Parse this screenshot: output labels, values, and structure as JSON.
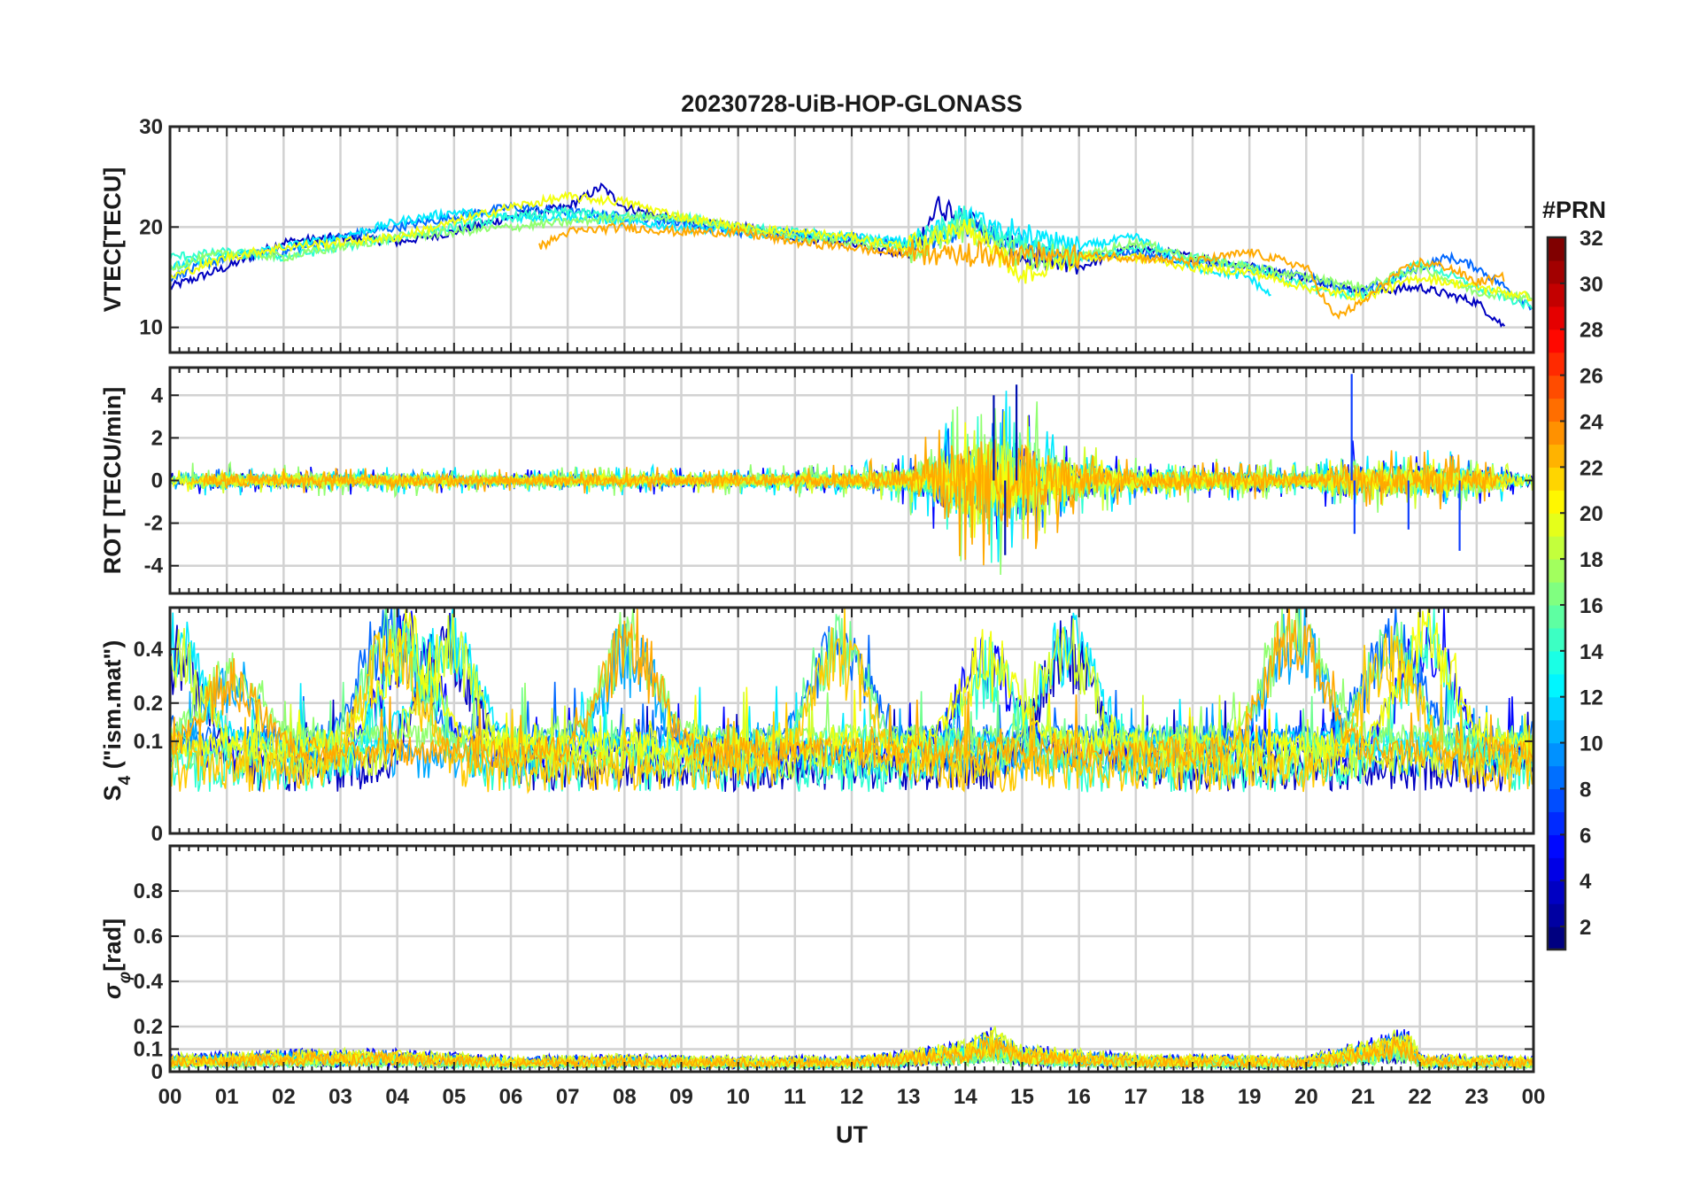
{
  "chart_data": {
    "type": "line",
    "title": "20230728-UiB-HOP-GLONASS",
    "xlabel": "UT",
    "x_tick_labels": [
      "00",
      "01",
      "02",
      "03",
      "04",
      "05",
      "06",
      "07",
      "08",
      "09",
      "10",
      "11",
      "12",
      "13",
      "14",
      "15",
      "16",
      "17",
      "18",
      "19",
      "20",
      "21",
      "22",
      "23",
      "00"
    ],
    "x_range_hours": [
      0,
      24
    ],
    "grid": true,
    "colorbar": {
      "title": "#PRN",
      "range": [
        1,
        32
      ],
      "tick_labels": [
        "2",
        "4",
        "6",
        "8",
        "10",
        "12",
        "14",
        "16",
        "18",
        "20",
        "22",
        "24",
        "26",
        "28",
        "30",
        "32"
      ],
      "colormap": "jet"
    },
    "panels": [
      {
        "id": "vtec",
        "ylabel": "VTEC[TECU]",
        "ylim": [
          7.5,
          30
        ],
        "y_tick_labels": [
          "10",
          "20",
          "30"
        ],
        "series_description": "VTEC per PRN, ~13-24 TECU, peak near 13-14 UT",
        "series": [
          {
            "prn": 3,
            "x": [
              0,
              1,
              2,
              3,
              4,
              5,
              6,
              7,
              7.6,
              8,
              9,
              10,
              11,
              12,
              13,
              13.5,
              14,
              15,
              16,
              17,
              18,
              19,
              20,
              21,
              22,
              23,
              23.5
            ],
            "y": [
              14,
              16,
              18.5,
              19,
              18.5,
              19.5,
              21,
              22,
              24,
              22,
              20.5,
              20,
              19,
              18.5,
              17,
              22,
              21,
              17,
              16,
              18,
              17,
              16,
              15,
              13.5,
              14,
              12.5,
              10
            ]
          },
          {
            "prn": 8,
            "x": [
              0,
              1,
              2,
              3,
              4,
              5,
              6,
              7,
              8,
              9,
              10,
              11,
              12,
              13,
              14,
              15,
              16,
              17,
              18,
              19,
              20,
              21,
              22,
              22.5,
              23,
              24
            ],
            "y": [
              15,
              17,
              17.5,
              19,
              20,
              21,
              22,
              21.5,
              21,
              20.5,
              19.5,
              19.5,
              19,
              18,
              20,
              18,
              17,
              17.5,
              16.5,
              16,
              15,
              13.5,
              16,
              17,
              16,
              12
            ]
          },
          {
            "prn": 12,
            "x": [
              0,
              1,
              2,
              3,
              4,
              5,
              6,
              7,
              8,
              9,
              10,
              11,
              12,
              13,
              14,
              15,
              16,
              17,
              18,
              19,
              19.4
            ],
            "y": [
              16,
              17,
              18,
              19,
              20.5,
              21.5,
              21,
              21,
              20.5,
              20,
              19.5,
              19,
              19,
              18.5,
              21,
              19,
              18,
              19,
              16,
              15,
              13
            ]
          },
          {
            "prn": 14,
            "x": [
              0,
              1,
              2,
              3,
              4,
              5,
              6,
              7,
              8,
              9,
              10,
              11,
              12,
              13,
              14,
              15,
              16,
              17,
              18,
              19,
              20,
              21,
              22,
              23,
              24
            ],
            "y": [
              17,
              17.5,
              17,
              18,
              19,
              20,
              21,
              21.5,
              21,
              21,
              20,
              19.5,
              19,
              18,
              21,
              18,
              17,
              18,
              17,
              16,
              14,
              13,
              16.5,
              14,
              12
            ]
          },
          {
            "prn": 17,
            "x": [
              0,
              1,
              2,
              3,
              4,
              5,
              6,
              7,
              8,
              9,
              10,
              11,
              12,
              13,
              14,
              15,
              16,
              17,
              18,
              19,
              20,
              21,
              22,
              23,
              24
            ],
            "y": [
              16,
              17.5,
              17,
              18,
              19,
              19.5,
              20,
              20.5,
              21,
              21,
              20,
              19,
              18.5,
              17.5,
              20,
              17,
              17,
              18.5,
              17,
              16,
              15,
              14,
              16,
              13.5,
              13
            ]
          },
          {
            "prn": 20,
            "x": [
              0,
              1,
              2,
              3,
              4,
              5,
              6,
              7,
              8,
              9,
              10,
              11,
              12,
              13,
              14,
              15,
              16,
              17,
              18,
              19,
              20,
              21,
              22,
              23,
              24
            ],
            "y": [
              15,
              17,
              18,
              18.5,
              19,
              20.5,
              22,
              23,
              22.5,
              21,
              20,
              19.5,
              19,
              18,
              20,
              15,
              17,
              17,
              16,
              15.5,
              14,
              13,
              15,
              14,
              13
            ]
          },
          {
            "prn": 23,
            "x": [
              6.5,
              7,
              8,
              9,
              10,
              11,
              12,
              12.5,
              17,
              18,
              19,
              20,
              20.5,
              21,
              21.5,
              22,
              22.5,
              23,
              23.5
            ],
            "y": [
              18,
              19.5,
              20,
              19.5,
              19.5,
              18.5,
              18,
              17.5,
              17,
              16.5,
              17.5,
              16,
              11,
              12.5,
              15,
              16.5,
              16,
              14.5,
              15
            ]
          }
        ]
      },
      {
        "id": "rot",
        "ylabel": "ROT [TECU/min]",
        "ylim": [
          -5.3,
          5.3
        ],
        "y_tick_labels": [
          "-4",
          "-2",
          "0",
          "2",
          "4"
        ],
        "series_description": "Rate of TEC, mostly within ±1, strong spikes 13.5-16 UT (±4) and near 20.8 UT",
        "envelope": {
          "x": [
            0,
            2,
            4,
            6,
            8,
            10,
            12,
            13,
            13.5,
            14,
            14.5,
            15,
            15.5,
            16,
            17,
            18,
            19,
            20,
            20.8,
            21,
            22,
            23,
            24
          ],
          "amplitude": [
            0.6,
            0.5,
            0.5,
            0.4,
            0.5,
            0.5,
            0.6,
            1.0,
            2.0,
            3.0,
            3.5,
            3.0,
            2.0,
            1.5,
            0.8,
            0.7,
            0.7,
            0.6,
            1.5,
            1.0,
            1.2,
            0.9,
            0.5
          ]
        },
        "spikes": [
          {
            "x": 14.5,
            "y": 4.0
          },
          {
            "x": 14.9,
            "y": 4.5
          },
          {
            "x": 14.7,
            "y": -3.5
          },
          {
            "x": 20.8,
            "y": 5.0
          },
          {
            "x": 20.85,
            "y": -2.5
          },
          {
            "x": 21.8,
            "y": -2.3
          },
          {
            "x": 22.7,
            "y": -3.3
          }
        ]
      },
      {
        "id": "s4",
        "ylabel": "S4 (\"ism.mat\")",
        "ylabel_main": "S",
        "ylabel_sub": "4",
        "ylabel_rest": " (\"ism.mat\")",
        "ylim": [
          0,
          0.6
        ],
        "y_tick_labels": [
          "0",
          "0.1",
          "0.2",
          "0.4"
        ],
        "y_tick_values": [
          0,
          0.1,
          0.2,
          0.4
        ],
        "scale": "sqrt",
        "series_description": "Amplitude scintillation index per PRN, mostly 0.02-0.3 with peaks near 0.5-0.6",
        "peaks": [
          {
            "x": 0.1,
            "y": 0.5
          },
          {
            "x": 1.1,
            "y": 0.3
          },
          {
            "x": 3.9,
            "y": 0.55
          },
          {
            "x": 4.2,
            "y": 0.5
          },
          {
            "x": 4.9,
            "y": 0.5
          },
          {
            "x": 8.1,
            "y": 0.5
          },
          {
            "x": 11.8,
            "y": 0.48
          },
          {
            "x": 14.4,
            "y": 0.4
          },
          {
            "x": 15.8,
            "y": 0.5
          },
          {
            "x": 19.8,
            "y": 0.58
          },
          {
            "x": 21.5,
            "y": 0.45
          },
          {
            "x": 22.1,
            "y": 0.5
          }
        ]
      },
      {
        "id": "sigma_phi",
        "ylabel": "σφ[rad]",
        "ylabel_main": "σ",
        "ylabel_sub": "φ",
        "ylabel_rest": "[rad]",
        "ylim": [
          0,
          1
        ],
        "y_tick_labels": [
          "0",
          "0.1",
          "0.2",
          "0.4",
          "0.6",
          "0.8"
        ],
        "y_tick_values": [
          0,
          0.1,
          0.2,
          0.4,
          0.6,
          0.8
        ],
        "series_description": "Phase scintillation index, mostly 0.03-0.12, peaks ~0.25 near 14.4 UT and 21.8 UT",
        "envelope": {
          "x": [
            0,
            2,
            4,
            6,
            8,
            10,
            12,
            13,
            14,
            14.5,
            15,
            16,
            17,
            18,
            20,
            21.8,
            22,
            24
          ],
          "level": [
            0.08,
            0.1,
            0.1,
            0.07,
            0.08,
            0.07,
            0.07,
            0.1,
            0.14,
            0.2,
            0.12,
            0.1,
            0.08,
            0.08,
            0.07,
            0.2,
            0.08,
            0.07
          ]
        }
      }
    ]
  }
}
